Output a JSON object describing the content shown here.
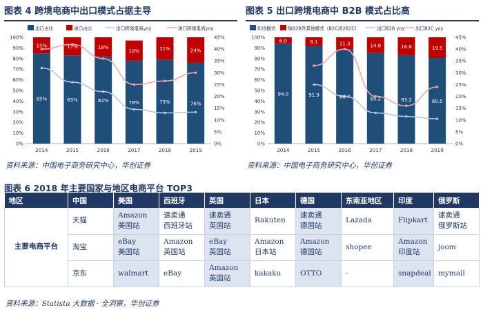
{
  "fig4": {
    "title": "图表 4   跨境电商中出口模式占据主导",
    "source": "资料来源：中国电子商务研究中心，华创证券",
    "legend": [
      "出口占比",
      "进口占比",
      "出口跨境电商yoy",
      "进口跨境电商yoy"
    ],
    "chart_data": {
      "type": "bar",
      "stacked": true,
      "categories": [
        "2014",
        "2015",
        "2016",
        "2017",
        "2018",
        "2019"
      ],
      "series": [
        {
          "name": "出口占比",
          "values": [
            85,
            83,
            82,
            78,
            79,
            76
          ],
          "labels": [
            "85%",
            "83%",
            "82%",
            "78%",
            "79%",
            "76%"
          ],
          "color": "#1f4e79"
        },
        {
          "name": "进口占比",
          "values": [
            15,
            17,
            18,
            19,
            21,
            24
          ],
          "labels": [
            "15%",
            "17%",
            "18%",
            "19%",
            "21%",
            "24%"
          ],
          "color": "#c00000"
        }
      ],
      "lines": [
        {
          "name": "出口跨境电商yoy",
          "axis": "right",
          "values": [
            32,
            26,
            22,
            14.5,
            13,
            13.3
          ],
          "color": "#b4c7e7"
        },
        {
          "name": "进口跨境电商yoy",
          "axis": "right",
          "values": [
            40,
            42,
            36,
            25,
            26.5,
            30
          ],
          "color": "#f4a6a6"
        }
      ],
      "ylim": [
        0,
        100
      ],
      "yticks": [
        "0%",
        "10%",
        "20%",
        "30%",
        "40%",
        "50%",
        "60%",
        "70%",
        "80%",
        "90%",
        "100%"
      ],
      "y2lim": [
        0,
        45
      ],
      "y2ticks": [
        "0%",
        "5%",
        "10%",
        "15%",
        "20%",
        "25%",
        "30%",
        "35%",
        "40%",
        "45%"
      ],
      "legend_position": "top"
    }
  },
  "fig5": {
    "title": "图表 5   出口跨境电商中 B2B 模式占比高",
    "source": "资料来源：中国电子商务研究中心，华创证券",
    "legend": [
      "B2B模式",
      "除B2B外其他模式（B2C/B2B2C）",
      "出口B2B yoy",
      "出口B2C yoy"
    ],
    "chart_data": {
      "type": "bar",
      "stacked": true,
      "categories": [
        "2014",
        "2015",
        "2016",
        "2017",
        "2018",
        "2019"
      ],
      "series": [
        {
          "name": "B2B模式",
          "values": [
            94.0,
            91.9,
            88.7,
            85.2,
            83.2,
            80.5
          ],
          "labels": [
            "94.0",
            "91.9",
            "88.7",
            "85.2",
            "83.2",
            "80.5"
          ],
          "color": "#1f4e79"
        },
        {
          "name": "除B2B外其他模式（B2C/B2B2C）",
          "values": [
            6.0,
            8.1,
            11.3,
            14.8,
            16.8,
            19.5
          ],
          "labels": [
            "6.0",
            "8.1",
            "11.3",
            "14.8",
            "16.8",
            "19.5"
          ],
          "color": "#c00000"
        }
      ],
      "lines": [
        {
          "name": "出口B2B yoy",
          "axis": "right",
          "values": [
            null,
            25,
            20,
            13,
            11.5,
            10.5
          ],
          "color": "#b4c7e7"
        },
        {
          "name": "出口B2C yoy",
          "axis": "right",
          "values": [
            null,
            33,
            40,
            20,
            16,
            24
          ],
          "color": "#f4a6a6"
        }
      ],
      "ylim": [
        0,
        100
      ],
      "yticks": [
        "0%",
        "10%",
        "20%",
        "30%",
        "40%",
        "50%",
        "60%",
        "70%",
        "80%",
        "90%",
        "100%"
      ],
      "y2lim": [
        0,
        45
      ],
      "y2ticks": [
        "0%",
        "5%",
        "10%",
        "15%",
        "20%",
        "25%",
        "30%",
        "35%",
        "40%",
        "45%"
      ],
      "legend_position": "top"
    }
  },
  "fig6": {
    "title": "图表 6   2018 年主要国家与地区电商平台 TOP3",
    "source": "资料来源：Statista 大数据 · 全洞察，华创证券",
    "headers": [
      "地区",
      "中国",
      "美国",
      "西班牙",
      "英国",
      "日本",
      "德国",
      "东南亚地区",
      "印度",
      "俄罗斯"
    ],
    "row_header": "主要电商平台",
    "rows": [
      [
        [
          "天猫"
        ],
        [
          "Amazon",
          "美国站"
        ],
        [
          "速卖通",
          "西班牙站"
        ],
        [
          "速卖通",
          "英国站"
        ],
        [
          "Rakuten"
        ],
        [
          "速卖通",
          "德国站"
        ],
        [
          "Lazada"
        ],
        [
          "Flipkart"
        ],
        [
          "速卖通",
          "俄罗斯站"
        ]
      ],
      [
        [
          "淘宝"
        ],
        [
          "eBay",
          "美国站"
        ],
        [
          "Amazon",
          "英国站"
        ],
        [
          "eBay",
          "英国站"
        ],
        [
          "Amazon",
          "日本站"
        ],
        [
          "Amazon",
          "德国站"
        ],
        [
          "shopee"
        ],
        [
          "Amazon",
          "印度站"
        ],
        [
          "joom"
        ]
      ],
      [
        [
          "京东"
        ],
        [
          "walmart"
        ],
        [
          "eBay"
        ],
        [
          "Amazon",
          "英国站"
        ],
        [
          "kakaku"
        ],
        [
          "OTTO"
        ],
        [
          "-"
        ],
        [
          "snapdeal"
        ],
        [
          "mymall"
        ]
      ]
    ]
  }
}
